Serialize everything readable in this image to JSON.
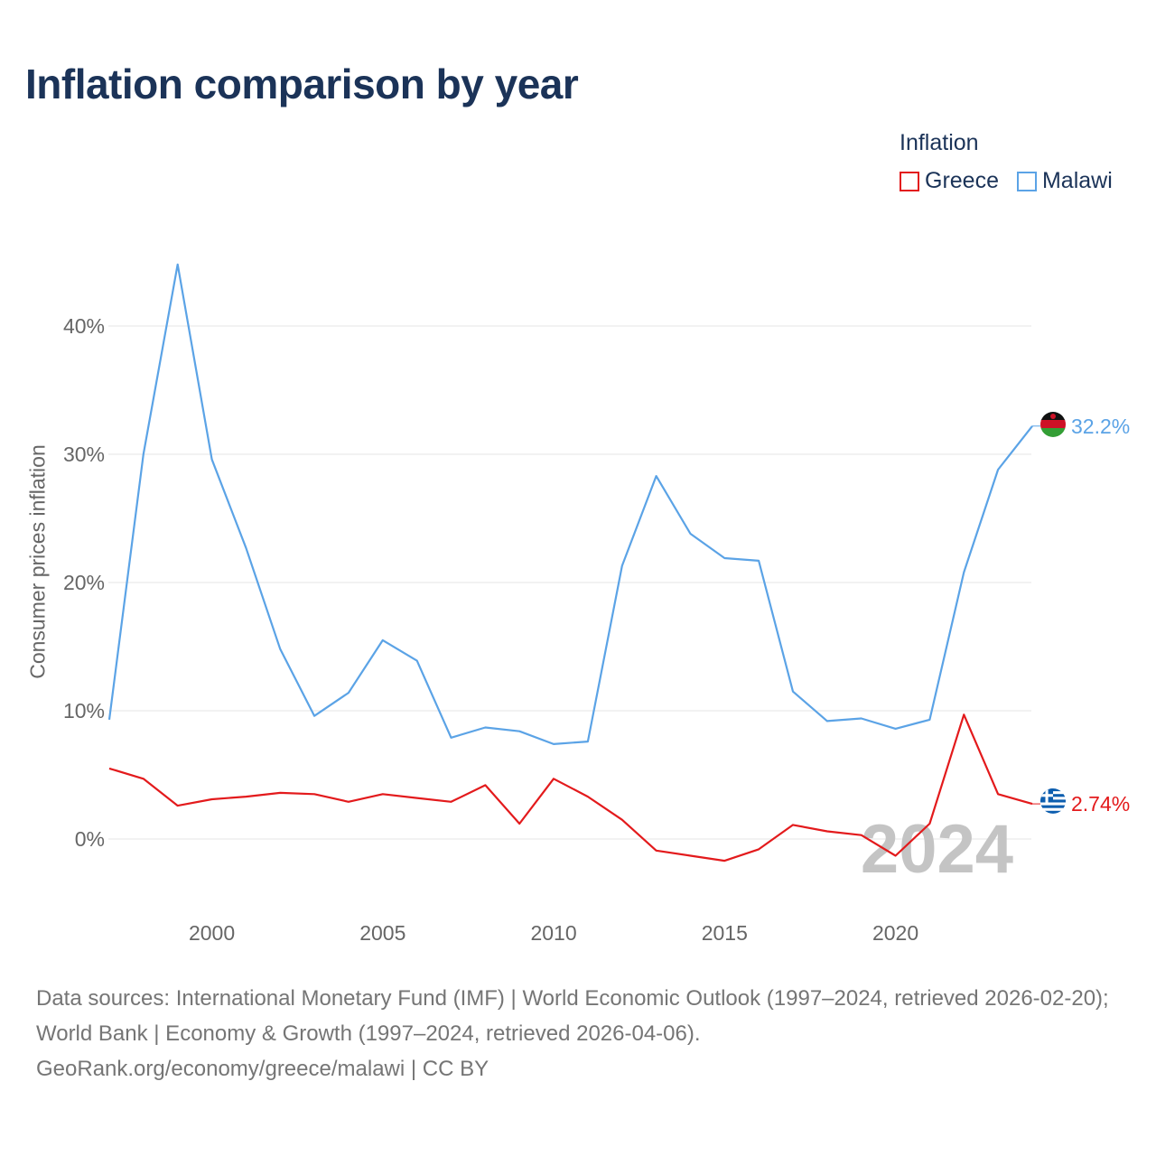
{
  "title": "Inflation comparison by year",
  "legend": {
    "title": "Inflation",
    "items": [
      {
        "label": "Greece",
        "color": "#e31a1c"
      },
      {
        "label": "Malawi",
        "color": "#5ba3e6"
      }
    ]
  },
  "footer": {
    "line1": "Data sources: International Monetary Fund (IMF) | World Economic Outlook (1997–2024, retrieved 2026-02-20); World Bank | Economy & Growth (1997–2024, retrieved 2026-04-06).",
    "line2": "GeoRank.org/economy/greece/malawi | CC BY"
  },
  "chart_data": {
    "type": "line",
    "title": "Inflation comparison by year",
    "xlabel": "",
    "ylabel": "Consumer prices inflation",
    "xlim": [
      1997,
      2024
    ],
    "ylim": [
      -5,
      48
    ],
    "yticks": [
      0,
      10,
      20,
      30,
      40
    ],
    "ytick_labels": [
      "0%",
      "10%",
      "20%",
      "30%",
      "40%"
    ],
    "xticks": [
      2000,
      2005,
      2010,
      2015,
      2020
    ],
    "xtick_labels": [
      "2000",
      "2005",
      "2010",
      "2015",
      "2020"
    ],
    "grid": true,
    "year_label": "2024",
    "x": [
      1997,
      1998,
      1999,
      2000,
      2001,
      2002,
      2003,
      2004,
      2005,
      2006,
      2007,
      2008,
      2009,
      2010,
      2011,
      2012,
      2013,
      2014,
      2015,
      2016,
      2017,
      2018,
      2019,
      2020,
      2021,
      2022,
      2023,
      2024
    ],
    "series": [
      {
        "name": "Malawi",
        "color": "#5ba3e6",
        "end_label": "32.2%",
        "values": [
          9.3,
          30.0,
          44.8,
          29.6,
          22.7,
          14.8,
          9.6,
          11.4,
          15.5,
          13.9,
          7.9,
          8.7,
          8.4,
          7.4,
          7.6,
          21.3,
          28.3,
          23.8,
          21.9,
          21.7,
          11.5,
          9.2,
          9.4,
          8.6,
          9.3,
          20.8,
          28.8,
          32.2
        ]
      },
      {
        "name": "Greece",
        "color": "#e31a1c",
        "end_label": "2.74%",
        "values": [
          5.5,
          4.7,
          2.6,
          3.1,
          3.3,
          3.6,
          3.5,
          2.9,
          3.5,
          3.2,
          2.9,
          4.2,
          1.2,
          4.7,
          3.3,
          1.5,
          -0.9,
          -1.3,
          -1.7,
          -0.8,
          1.1,
          0.6,
          0.3,
          -1.3,
          1.2,
          9.7,
          3.5,
          2.74
        ]
      }
    ]
  }
}
